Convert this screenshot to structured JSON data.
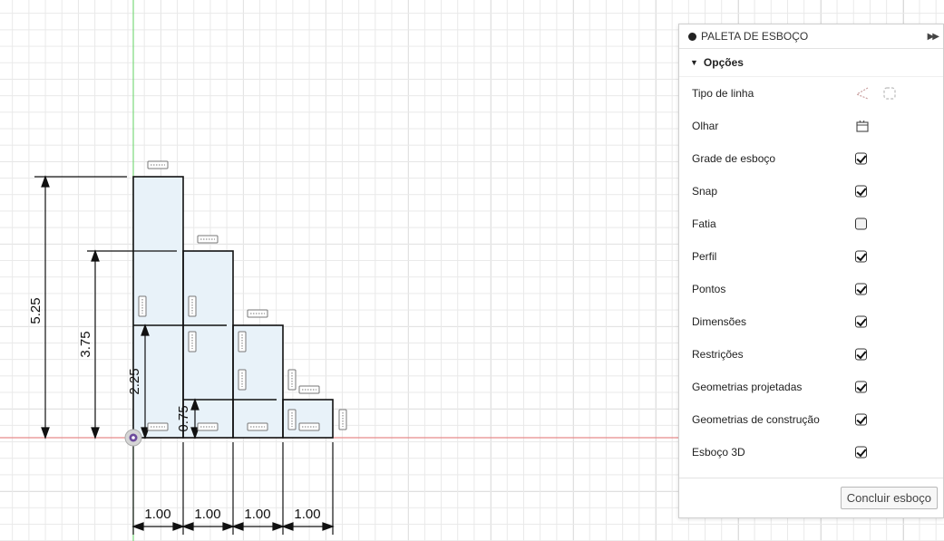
{
  "palette": {
    "title": "PALETA DE ESBOÇO",
    "section": "Opções",
    "rows": [
      {
        "label": "Tipo de linha",
        "control": "linetype-icons"
      },
      {
        "label": "Olhar",
        "control": "look-icon"
      },
      {
        "label": "Grade de esboço",
        "control": "checkbox",
        "checked": true
      },
      {
        "label": "Snap",
        "control": "checkbox",
        "checked": true
      },
      {
        "label": "Fatia",
        "control": "checkbox",
        "checked": false
      },
      {
        "label": "Perfil",
        "control": "checkbox",
        "checked": true
      },
      {
        "label": "Pontos",
        "control": "checkbox",
        "checked": true
      },
      {
        "label": "Dimensões",
        "control": "checkbox",
        "checked": true
      },
      {
        "label": "Restrições",
        "control": "checkbox",
        "checked": true
      },
      {
        "label": "Geometrias projetadas",
        "control": "checkbox",
        "checked": true
      },
      {
        "label": "Geometrias de construção",
        "control": "checkbox",
        "checked": true
      },
      {
        "label": "Esboço 3D",
        "control": "checkbox",
        "checked": true
      }
    ],
    "finish_label": "Concluir esboço"
  },
  "sketch": {
    "horizontal_dims": [
      "1.00",
      "1.00",
      "1.00",
      "1.00"
    ],
    "vertical_dims": [
      "5.25",
      "3.75",
      "2.25",
      "0.75"
    ],
    "colors": {
      "axis_x": "#e88a8a",
      "axis_y": "#7bd97b",
      "profile_fill": "#e8f2f9",
      "line": "#111111"
    }
  }
}
